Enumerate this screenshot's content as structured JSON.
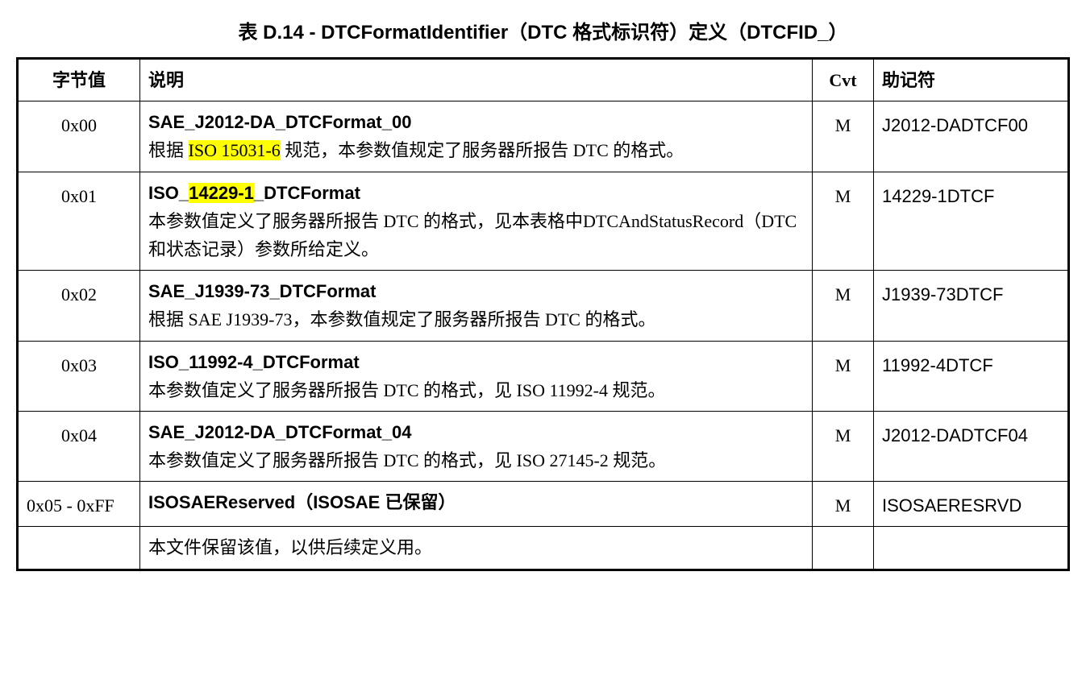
{
  "title": "表 D.14 - DTCFormatIdentifier（DTC 格式标识符）定义（DTCFID_）",
  "headers": {
    "byte": "字节值",
    "desc": "说明",
    "cvt": "Cvt",
    "mnem": "助记符"
  },
  "rows": [
    {
      "byte": "0x00",
      "title": "SAE_J2012-DA_DTCFormat_00",
      "body_pre": "根据 ",
      "body_hl": "ISO 15031-6",
      "body_post": " 规范，本参数值规定了服务器所报告 DTC 的格式。",
      "cvt": "M",
      "mnem": "J2012-DADTCF00"
    },
    {
      "byte": "0x01",
      "title_pre": "ISO_",
      "title_hl": "14229-1",
      "title_post": "_DTCFormat",
      "body": "本参数值定义了服务器所报告 DTC 的格式，见本表格中DTCAndStatusRecord（DTC 和状态记录）参数所给定义。",
      "cvt": "M",
      "mnem": "14229-1DTCF"
    },
    {
      "byte": "0x02",
      "title": "SAE_J1939-73_DTCFormat",
      "body": "根据 SAE J1939-73，本参数值规定了服务器所报告 DTC 的格式。",
      "cvt": "M",
      "mnem": "J1939-73DTCF"
    },
    {
      "byte": "0x03",
      "title": "ISO_11992-4_DTCFormat",
      "body": "本参数值定义了服务器所报告 DTC 的格式，见 ISO 11992-4 规范。",
      "cvt": "M",
      "mnem": "11992-4DTCF"
    },
    {
      "byte": "0x04",
      "title": "SAE_J2012-DA_DTCFormat_04",
      "body": "本参数值定义了服务器所报告 DTC 的格式，见 ISO 27145-2 规范。",
      "cvt": "M",
      "mnem": "J2012-DADTCF04"
    },
    {
      "byte": "0x05 - 0xFF",
      "title": "ISOSAEReserved（ISOSAE 已保留）",
      "cvt": "M",
      "mnem": "ISOSAERESRVD"
    }
  ],
  "footer": "本文件保留该值，以供后续定义用。",
  "colors": {
    "highlight": "#ffff00",
    "border": "#000000",
    "background": "#ffffff",
    "text": "#000000"
  },
  "typography": {
    "title_fontsize": 24,
    "cell_fontsize": 22
  }
}
